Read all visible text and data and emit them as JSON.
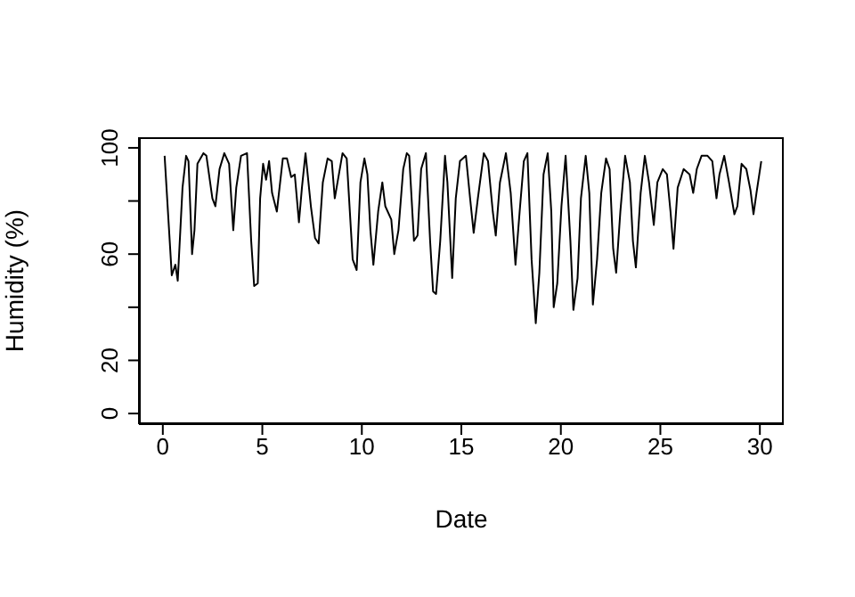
{
  "chart_data": {
    "type": "line",
    "xlabel": "Date",
    "ylabel": "Humidity (%)",
    "xlim": [
      -1.2,
      31.2
    ],
    "xticks": [
      0,
      5,
      10,
      15,
      20,
      25,
      30
    ],
    "ylim": [
      -4,
      104
    ],
    "yticks": [
      0,
      20,
      {
        "value": 40,
        "label": null
      },
      60,
      {
        "value": 80,
        "label": null
      },
      100
    ],
    "marker": "none",
    "line_style": "solid",
    "series": [
      {
        "color": "#000000",
        "x": [
          0.09,
          0.45,
          0.63,
          0.75,
          0.99,
          1.17,
          1.29,
          1.47,
          1.59,
          1.74,
          2.04,
          2.19,
          2.49,
          2.64,
          2.85,
          3.09,
          3.33,
          3.54,
          3.69,
          3.93,
          4.23,
          4.44,
          4.59,
          4.77,
          4.89,
          5.04,
          5.19,
          5.34,
          5.49,
          5.73,
          6.03,
          6.24,
          6.45,
          6.63,
          6.84,
          6.99,
          7.17,
          7.44,
          7.65,
          7.83,
          8.04,
          8.28,
          8.49,
          8.64,
          9.03,
          9.24,
          9.54,
          9.74,
          9.93,
          10.13,
          10.28,
          10.43,
          10.58,
          10.82,
          11.03,
          11.18,
          11.48,
          11.63,
          11.84,
          12.08,
          12.26,
          12.38,
          12.62,
          12.8,
          12.98,
          13.22,
          13.43,
          13.58,
          13.73,
          13.94,
          14.18,
          14.3,
          14.54,
          14.72,
          14.93,
          15.23,
          15.44,
          15.62,
          15.83,
          16.13,
          16.34,
          16.58,
          16.73,
          16.94,
          17.24,
          17.48,
          17.72,
          17.93,
          18.14,
          18.32,
          18.53,
          18.74,
          18.92,
          19.13,
          19.34,
          19.52,
          19.64,
          19.82,
          20.03,
          20.24,
          20.48,
          20.63,
          20.84,
          21.01,
          21.25,
          21.43,
          21.61,
          21.82,
          22.03,
          22.27,
          22.45,
          22.63,
          22.78,
          22.99,
          23.23,
          23.47,
          23.62,
          23.77,
          24.01,
          24.22,
          24.43,
          24.67,
          24.85,
          25.12,
          25.33,
          25.51,
          25.66,
          25.87,
          26.17,
          26.47,
          26.65,
          26.83,
          27.07,
          27.37,
          27.61,
          27.82,
          27.97,
          28.21,
          28.45,
          28.72,
          28.87,
          29.08,
          29.32,
          29.53,
          29.68,
          29.83,
          30.07
        ],
        "values": [
          97,
          52,
          56,
          50,
          85,
          97,
          95,
          60,
          69,
          94,
          98,
          97,
          81,
          78,
          92,
          98,
          94,
          69,
          85,
          97,
          98,
          65,
          48,
          49,
          81,
          94,
          88,
          95,
          83,
          76,
          96,
          96,
          89,
          90,
          72,
          85,
          98,
          78,
          66,
          64,
          87,
          96,
          95,
          81,
          98,
          96,
          58,
          54,
          87,
          96,
          90,
          69,
          56,
          76,
          87,
          78,
          73,
          60,
          69,
          92,
          98,
          97,
          65,
          67,
          92,
          98,
          65,
          46,
          45,
          65,
          97,
          87,
          51,
          81,
          95,
          97,
          81,
          68,
          81,
          98,
          95,
          76,
          67,
          87,
          98,
          83,
          56,
          76,
          95,
          98,
          58,
          34,
          53,
          90,
          98,
          76,
          40,
          49,
          78,
          97,
          65,
          39,
          51,
          81,
          97,
          83,
          41,
          58,
          83,
          96,
          92,
          62,
          53,
          76,
          97,
          87,
          65,
          55,
          83,
          97,
          87,
          71,
          87,
          92,
          90,
          76,
          62,
          85,
          92,
          90,
          83,
          92,
          97,
          97,
          95,
          81,
          90,
          97,
          87,
          75,
          78,
          94,
          92,
          84,
          75,
          83,
          95
        ]
      }
    ]
  }
}
